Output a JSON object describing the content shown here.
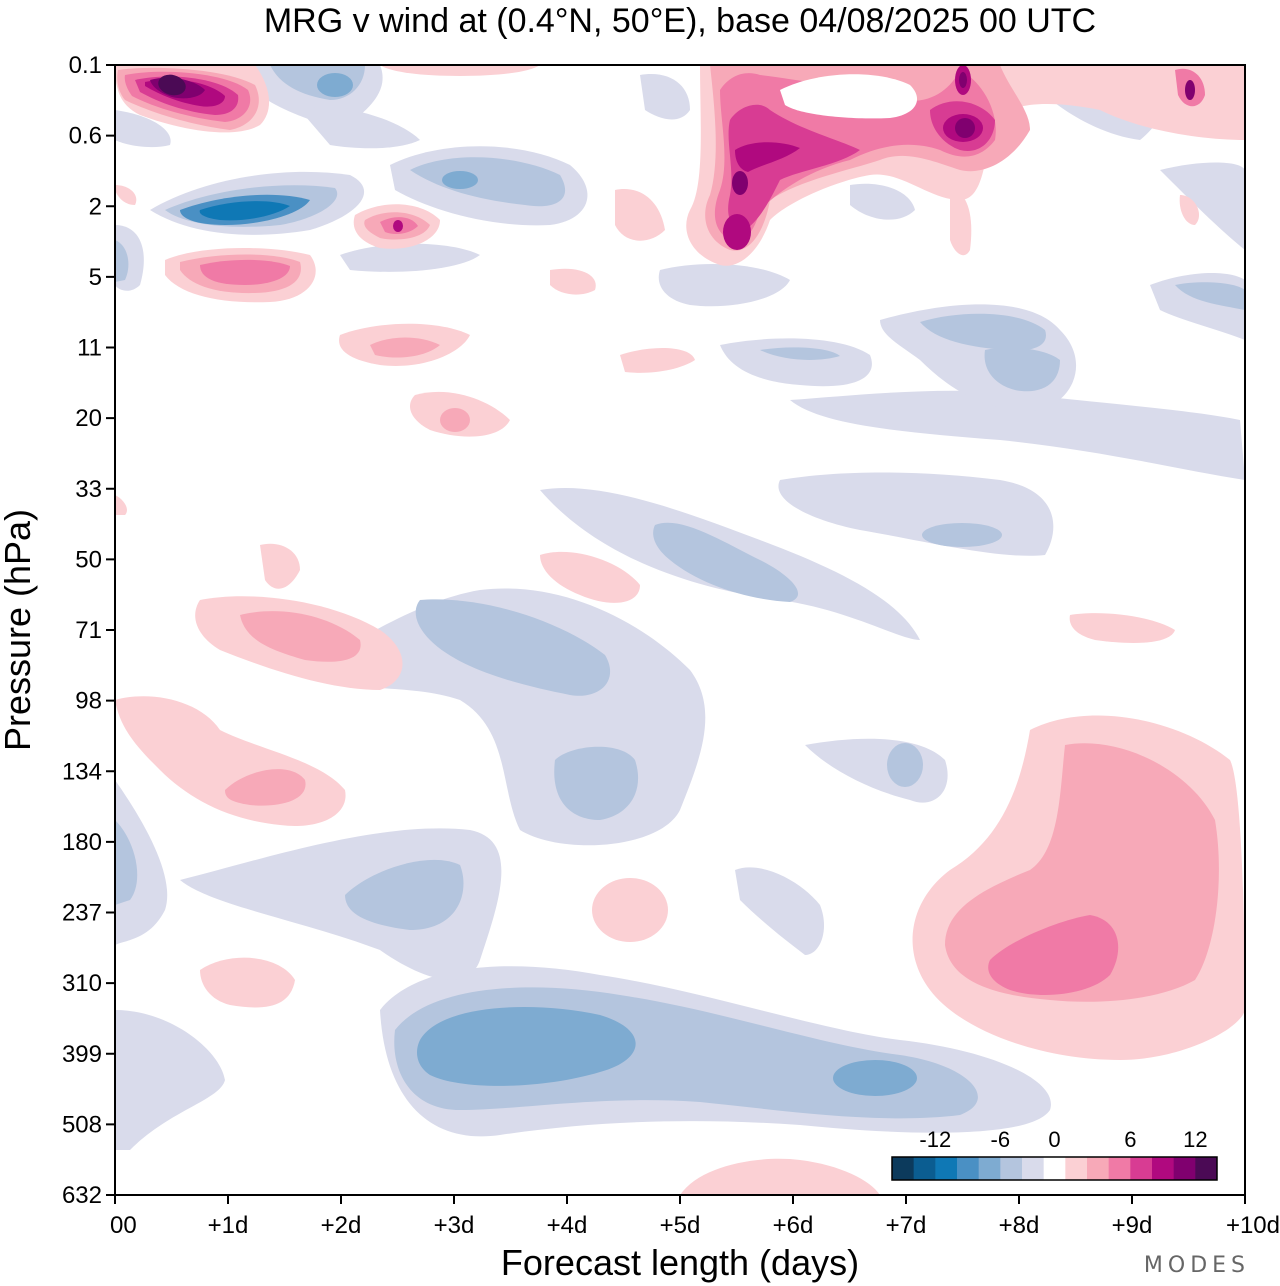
{
  "chart_data": {
    "type": "heatmap",
    "title": "MRG v wind at (0.4°N, 50°E),  base 04/08/2025  00 UTC",
    "xlabel": "Forecast length (days)",
    "ylabel": "Pressure (hPa)",
    "x_ticks": [
      "00",
      "+1d",
      "+2d",
      "+3d",
      "+4d",
      "+5d",
      "+6d",
      "+7d",
      "+8d",
      "+9d",
      "+10d"
    ],
    "y_ticks": [
      "0.1",
      "0.6",
      "2",
      "5",
      "11",
      "20",
      "33",
      "50",
      "71",
      "98",
      "134",
      "180",
      "237",
      "310",
      "399",
      "508",
      "632"
    ],
    "xlim": [
      0,
      10
    ],
    "ylim_hPa": [
      632,
      0.1
    ],
    "colorbar": {
      "tick_labels": [
        "-12",
        "-6",
        "0",
        "6",
        "12"
      ],
      "tick_values": [
        -12,
        -6,
        0,
        6,
        12
      ],
      "levels": [
        -14,
        -12,
        -10,
        -8,
        -6,
        -4,
        -2,
        2,
        4,
        6,
        8,
        10,
        12,
        14
      ],
      "colors": [
        "#0c3a5c",
        "#0b5d91",
        "#0f78b5",
        "#4a90c4",
        "#7eabd1",
        "#b4c5de",
        "#d9dbeb",
        "#ffffff",
        "#fbd0d4",
        "#f7a9b8",
        "#f07aa6",
        "#d83c93",
        "#b0097f",
        "#80006f",
        "#4b0a55"
      ]
    },
    "features": [
      {
        "name": "upper-stratosphere-positive-max",
        "day": 0.5,
        "pressure_hPa": 0.2,
        "v": 16
      },
      {
        "name": "upper-stratosphere-negative",
        "day": 1.0,
        "pressure_hPa": 2.5,
        "v": -14
      },
      {
        "name": "day6-positive",
        "day": 5.5,
        "pressure_hPa": 2.0,
        "v": 14
      },
      {
        "name": "mid-troposphere-negative",
        "day": 3.5,
        "pressure_hPa": 399,
        "v": -6
      },
      {
        "name": "upper-troposphere-positive",
        "day": 8.5,
        "pressure_hPa": 290,
        "v": 8
      },
      {
        "name": "tropopause-negative",
        "day": 3.8,
        "pressure_hPa": 134,
        "v": -5
      }
    ]
  },
  "branding": {
    "logo_text": "MODES"
  }
}
